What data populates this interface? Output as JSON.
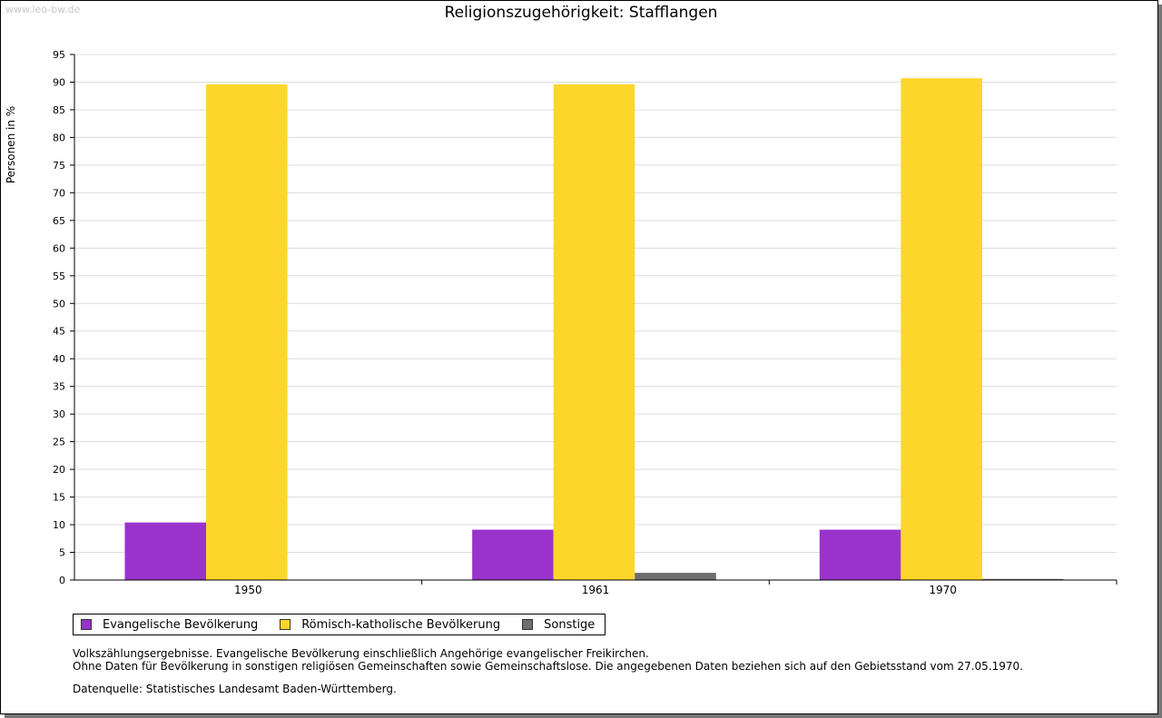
{
  "watermark": "www.leo-bw.de",
  "chart_data": {
    "type": "bar",
    "title": "Religionszugehörigkeit: Stafflangen",
    "xlabel": "",
    "ylabel": "Personen in %",
    "ylim": [
      0,
      95
    ],
    "yticks": [
      0,
      5,
      10,
      15,
      20,
      25,
      30,
      35,
      40,
      45,
      50,
      55,
      60,
      65,
      70,
      75,
      80,
      85,
      90,
      95
    ],
    "grid": true,
    "legend_position": "bottom-left",
    "categories": [
      "1950",
      "1961",
      "1970"
    ],
    "series": [
      {
        "name": "Evangelische Bevölkerung",
        "color": "#9933CC",
        "values": [
          10.4,
          9.1,
          9.1
        ]
      },
      {
        "name": "Römisch-katholische Bevölkerung",
        "color": "#FCD62B",
        "values": [
          89.6,
          89.6,
          90.7
        ]
      },
      {
        "name": "Sonstige",
        "color": "#6E6E6E",
        "values": [
          0.0,
          1.3,
          0.2
        ]
      }
    ]
  },
  "notes": {
    "line1": "Volkszählungsergebnisse. Evangelische Bevölkerung einschließlich Angehörige evangelischer Freikirchen.",
    "line2": "Ohne Daten für Bevölkerung in sonstigen religiösen Gemeinschaften sowie Gemeinschaftslose. Die angegebenen Daten beziehen sich auf den Gebietsstand vom 27.05.1970."
  },
  "source": "Datenquelle: Statistisches Landesamt Baden-Württemberg."
}
